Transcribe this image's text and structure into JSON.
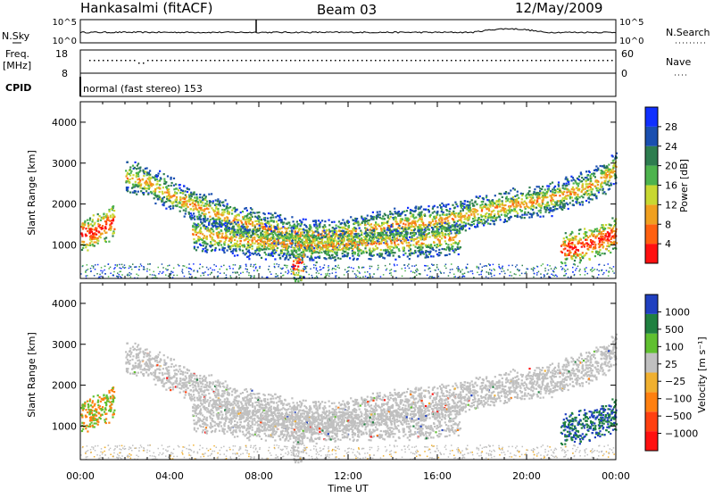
{
  "header": {
    "station": "Hankasalmi (fitACF)",
    "beam": "Beam 03",
    "date": "12/May/2009"
  },
  "noise_panel": {
    "left_label": "N.Sky",
    "right_label": "N.Search",
    "left_ticks": [
      "10^5",
      "10^0"
    ],
    "right_ticks": [
      "10^5",
      "10^0"
    ]
  },
  "freq_panel": {
    "label_line1": "Freq.",
    "label_line2": "[MHz]",
    "left_ticks": [
      "18",
      "8"
    ],
    "right_label": "Nave",
    "right_ticks": [
      "60",
      "0"
    ]
  },
  "cpid": {
    "label": "CPID",
    "mode": "normal (fast stereo) 153"
  },
  "x_axis": {
    "label": "Time UT",
    "ticks": [
      "00:00",
      "04:00",
      "08:00",
      "12:00",
      "16:00",
      "20:00",
      "00:00"
    ]
  },
  "power_panel": {
    "ylabel": "Slant Range [km]",
    "yticks": [
      "4000",
      "3000",
      "2000",
      "1000"
    ],
    "colorbar_label": "Power [dB]",
    "colorbar_ticks": [
      "28",
      "24",
      "20",
      "16",
      "12",
      "8",
      "4"
    ],
    "colors": [
      "#1030ff",
      "#1a4fb0",
      "#2e7d4f",
      "#4db34d",
      "#c8d832",
      "#f0a020",
      "#ff6010",
      "#ff1010"
    ]
  },
  "velocity_panel": {
    "ylabel": "Slant Range [km]",
    "yticks": [
      "4000",
      "3000",
      "2000",
      "1000"
    ],
    "colorbar_label": "Velocity [m s⁻¹]",
    "colorbar_ticks": [
      "1000",
      "500",
      "100",
      "25",
      "−25",
      "−100",
      "−500",
      "−1000"
    ],
    "colors": [
      "#2040c0",
      "#208040",
      "#60c030",
      "#c0c0c0",
      "#f0b030",
      "#ff8010",
      "#ff4010",
      "#ff1010"
    ]
  },
  "chart_data": {
    "type": "heatmap",
    "x_range_hours": [
      0,
      24
    ],
    "y_range_km": [
      180,
      4500
    ],
    "bands": [
      {
        "name": "",
        "x": [
          0.0,
          0.5,
          1.0,
          1.5
        ],
        "y": [
          1300,
          1300,
          1450,
          1600
        ]
      },
      {
        "name": "",
        "x": [
          2.0,
          3.0,
          4.0,
          5.0,
          6.0,
          7.0,
          8.0,
          9.0,
          10.0,
          11.0,
          12.0,
          13.0,
          14.0,
          15.0,
          16.0,
          17.0,
          18.0,
          19.0,
          20.0,
          21.0,
          22.0,
          23.0,
          24.0
        ],
        "y": [
          2700,
          2550,
          2250,
          2000,
          1800,
          1600,
          1450,
          1350,
          1250,
          1250,
          1300,
          1400,
          1500,
          1550,
          1600,
          1700,
          1850,
          1950,
          2050,
          2150,
          2300,
          2500,
          2900
        ]
      },
      {
        "name": "",
        "x": [
          5.0,
          7.0,
          9.0,
          11.0,
          13.0,
          15.0,
          17.0
        ],
        "y": [
          1300,
          1150,
          1050,
          1000,
          1050,
          1100,
          1200
        ]
      },
      {
        "name": "",
        "x": [
          9.5,
          10.0
        ],
        "y": [
          500,
          550
        ]
      },
      {
        "name": "",
        "x": [
          21.5,
          22.5,
          23.5,
          24.0
        ],
        "y": [
          900,
          1000,
          1200,
          1300
        ]
      }
    ]
  }
}
